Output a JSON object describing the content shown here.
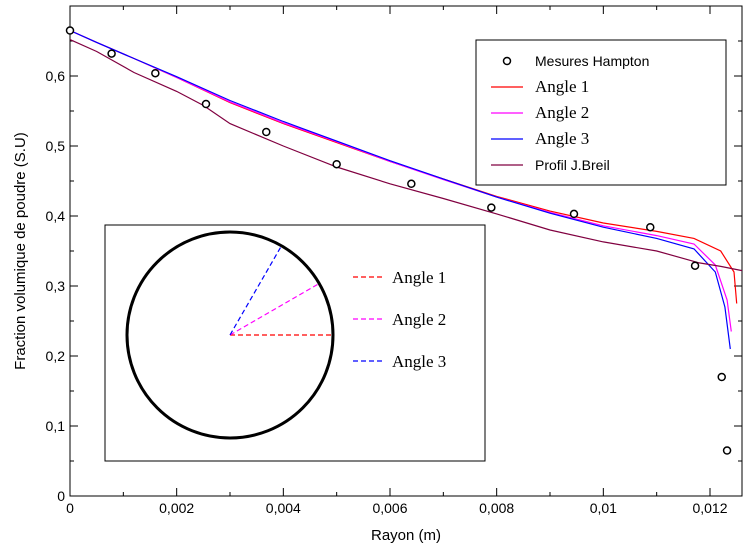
{
  "chart_data": {
    "type": "line",
    "title": "",
    "xlabel": "Rayon (m)",
    "ylabel": "Fraction volumique de poudre (S.U)",
    "xlim": [
      0,
      0.0126
    ],
    "ylim": [
      0,
      0.7
    ],
    "x_ticks": [
      0,
      0.002,
      0.004,
      0.006,
      0.008,
      0.01,
      0.012
    ],
    "x_tick_labels": [
      "0",
      "0,002",
      "0,004",
      "0,006",
      "0,008",
      "0,01",
      "0,012"
    ],
    "y_ticks": [
      0,
      0.1,
      0.2,
      0.3,
      0.4,
      0.5,
      0.6
    ],
    "y_tick_labels": [
      "0",
      "0,1",
      "0,2",
      "0,3",
      "0,4",
      "0,5",
      "0,6"
    ],
    "grid": false,
    "legend_position": "top-right",
    "series": [
      {
        "name": "Mesures Hampton",
        "style": "markers",
        "marker": "open-circle",
        "color": "#000000",
        "points": [
          [
            0.0,
            0.665
          ],
          [
            0.00078,
            0.632
          ],
          [
            0.0016,
            0.604
          ],
          [
            0.00255,
            0.56
          ],
          [
            0.00368,
            0.52
          ],
          [
            0.005,
            0.474
          ],
          [
            0.0064,
            0.446
          ],
          [
            0.0079,
            0.412
          ],
          [
            0.00945,
            0.403
          ],
          [
            0.01088,
            0.384
          ],
          [
            0.01172,
            0.329
          ],
          [
            0.01222,
            0.17
          ],
          [
            0.01232,
            0.065
          ]
        ]
      },
      {
        "name": "Angle 1",
        "style": "line",
        "color": "#ff0000",
        "points": [
          [
            0.0,
            0.665
          ],
          [
            0.0005,
            0.648
          ],
          [
            0.0012,
            0.625
          ],
          [
            0.002,
            0.598
          ],
          [
            0.003,
            0.562
          ],
          [
            0.004,
            0.532
          ],
          [
            0.005,
            0.505
          ],
          [
            0.006,
            0.478
          ],
          [
            0.007,
            0.453
          ],
          [
            0.008,
            0.428
          ],
          [
            0.009,
            0.407
          ],
          [
            0.01,
            0.39
          ],
          [
            0.011,
            0.378
          ],
          [
            0.0117,
            0.368
          ],
          [
            0.0122,
            0.35
          ],
          [
            0.01245,
            0.32
          ],
          [
            0.0125,
            0.275
          ]
        ]
      },
      {
        "name": "Angle 2",
        "style": "line",
        "color": "#ff00ff",
        "points": [
          [
            0.0,
            0.665
          ],
          [
            0.0005,
            0.648
          ],
          [
            0.0012,
            0.625
          ],
          [
            0.002,
            0.598
          ],
          [
            0.003,
            0.563
          ],
          [
            0.004,
            0.533
          ],
          [
            0.005,
            0.506
          ],
          [
            0.006,
            0.478
          ],
          [
            0.007,
            0.452
          ],
          [
            0.008,
            0.427
          ],
          [
            0.009,
            0.405
          ],
          [
            0.01,
            0.386
          ],
          [
            0.011,
            0.372
          ],
          [
            0.0117,
            0.36
          ],
          [
            0.0121,
            0.33
          ],
          [
            0.01232,
            0.28
          ],
          [
            0.0124,
            0.235
          ]
        ]
      },
      {
        "name": "Angle 3",
        "style": "line",
        "color": "#0000ff",
        "points": [
          [
            0.0,
            0.665
          ],
          [
            0.0005,
            0.648
          ],
          [
            0.0012,
            0.625
          ],
          [
            0.002,
            0.599
          ],
          [
            0.003,
            0.565
          ],
          [
            0.004,
            0.535
          ],
          [
            0.005,
            0.507
          ],
          [
            0.006,
            0.479
          ],
          [
            0.007,
            0.453
          ],
          [
            0.008,
            0.427
          ],
          [
            0.009,
            0.404
          ],
          [
            0.01,
            0.384
          ],
          [
            0.011,
            0.368
          ],
          [
            0.0117,
            0.353
          ],
          [
            0.0121,
            0.32
          ],
          [
            0.01228,
            0.27
          ],
          [
            0.01238,
            0.21
          ]
        ]
      },
      {
        "name": "Profil J.Breil",
        "style": "line",
        "color": "#800040",
        "points": [
          [
            0.0,
            0.652
          ],
          [
            0.0005,
            0.635
          ],
          [
            0.0012,
            0.605
          ],
          [
            0.002,
            0.578
          ],
          [
            0.0025,
            0.558
          ],
          [
            0.003,
            0.532
          ],
          [
            0.004,
            0.5
          ],
          [
            0.005,
            0.47
          ],
          [
            0.006,
            0.446
          ],
          [
            0.007,
            0.425
          ],
          [
            0.008,
            0.403
          ],
          [
            0.009,
            0.38
          ],
          [
            0.01,
            0.363
          ],
          [
            0.011,
            0.35
          ],
          [
            0.0118,
            0.333
          ],
          [
            0.0122,
            0.328
          ],
          [
            0.0126,
            0.322
          ]
        ]
      }
    ],
    "inset": {
      "description_shape": "circle",
      "legend": [
        {
          "name": "Angle 1",
          "color": "#ff0000",
          "angle_deg": 0
        },
        {
          "name": "Angle 2",
          "color": "#ff00ff",
          "angle_deg": 30
        },
        {
          "name": "Angle 3",
          "color": "#0000ff",
          "angle_deg": 60
        }
      ]
    }
  }
}
